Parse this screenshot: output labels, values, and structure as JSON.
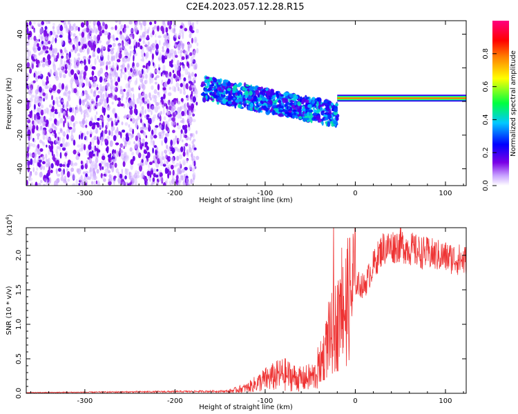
{
  "figure_title": "C2E4.2023.057.12.28.R15",
  "chart_data": [
    {
      "type": "heatmap",
      "title": "",
      "xlabel": "Height of straight line (km)",
      "ylabel": "Frequency (Hz)",
      "xlim": [
        -365,
        123
      ],
      "ylim": [
        -50,
        48
      ],
      "x_ticks": [
        -300,
        -200,
        -100,
        0,
        100
      ],
      "y_ticks": [
        -40,
        -20,
        0,
        20,
        40
      ],
      "colorbar": {
        "label": "Normalized spectral amplitude",
        "range": [
          0,
          1
        ],
        "ticks": [
          0.0,
          0.2,
          0.4,
          0.6,
          0.8
        ],
        "colormap": [
          "#ffffff",
          "#c9a4ff",
          "#7a00e6",
          "#0000ff",
          "#00c8ff",
          "#00ff40",
          "#ffff00",
          "#ff8000",
          "#ff0000",
          "#ff0080"
        ]
      },
      "features": [
        {
          "region": "noise",
          "x_range": [
            -365,
            -175
          ],
          "y_range": [
            -50,
            48
          ],
          "amplitude": 0.15
        },
        {
          "region": "signal-band",
          "x_range": [
            -170,
            -20
          ],
          "frequency_start": 8,
          "frequency_end": -8,
          "amplitude": 0.35
        },
        {
          "region": "narrow-line",
          "x_range": [
            -20,
            123
          ],
          "frequency": 2,
          "amplitude": 0.6
        }
      ],
      "grid": false
    },
    {
      "type": "line",
      "title": "",
      "xlabel": "Height of straight line (km)",
      "ylabel": "SNR (10 * v/v)",
      "y_scale_label": "(x10^4)",
      "xlim": [
        -365,
        123
      ],
      "ylim": [
        0,
        2.4
      ],
      "x_ticks": [
        -300,
        -200,
        -100,
        0,
        100
      ],
      "y_ticks": [
        0.0,
        0.5,
        1.0,
        1.5,
        2.0
      ],
      "series_color": "#ee3333",
      "envelope": {
        "x": [
          -365,
          -250,
          -140,
          -120,
          -100,
          -80,
          -60,
          -45,
          -35,
          -25,
          -15,
          -5,
          0,
          10,
          20,
          30,
          50,
          70,
          90,
          110,
          123
        ],
        "y": [
          0.01,
          0.02,
          0.03,
          0.08,
          0.2,
          0.28,
          0.2,
          0.25,
          0.55,
          0.9,
          1.1,
          1.45,
          1.6,
          1.55,
          1.85,
          2.1,
          2.15,
          2.05,
          2.0,
          1.95,
          1.92
        ]
      },
      "grid": false
    }
  ]
}
